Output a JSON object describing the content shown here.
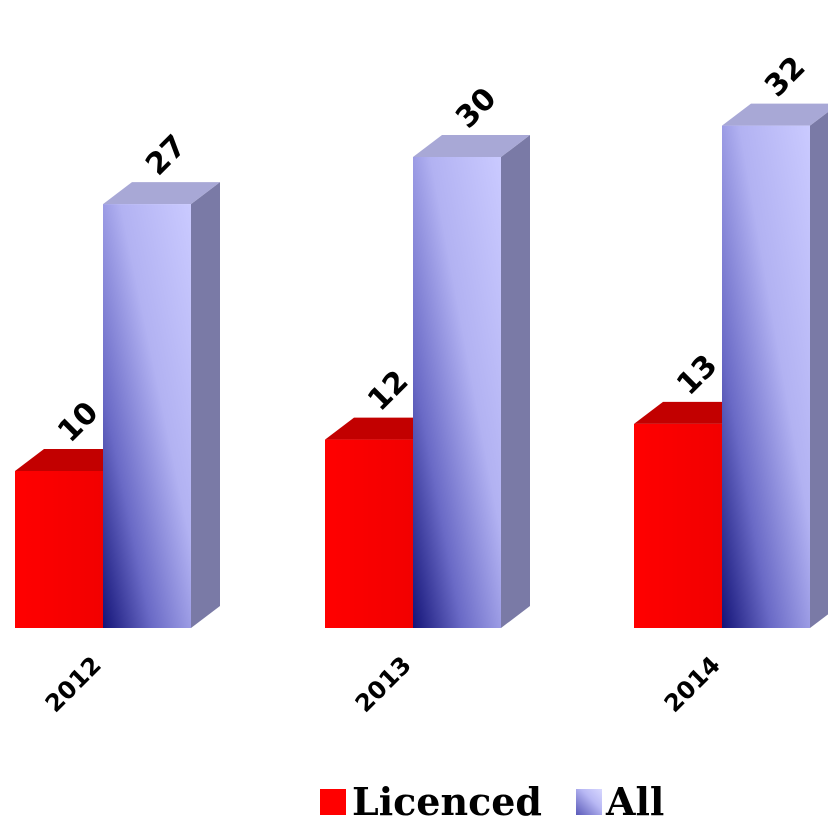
{
  "chart_data": {
    "type": "bar",
    "style": "3d-clustered-column",
    "categories": [
      "2012",
      "2013",
      "2014"
    ],
    "series": [
      {
        "name": "Licenced",
        "values": [
          10,
          12,
          13
        ],
        "color": "#ff0000"
      },
      {
        "name": "All",
        "values": [
          27,
          30,
          32
        ],
        "color": "#c8c8ff"
      }
    ],
    "ylim": [
      0,
      32
    ],
    "grid": false,
    "legend": "bottom-right",
    "data_labels": true
  }
}
